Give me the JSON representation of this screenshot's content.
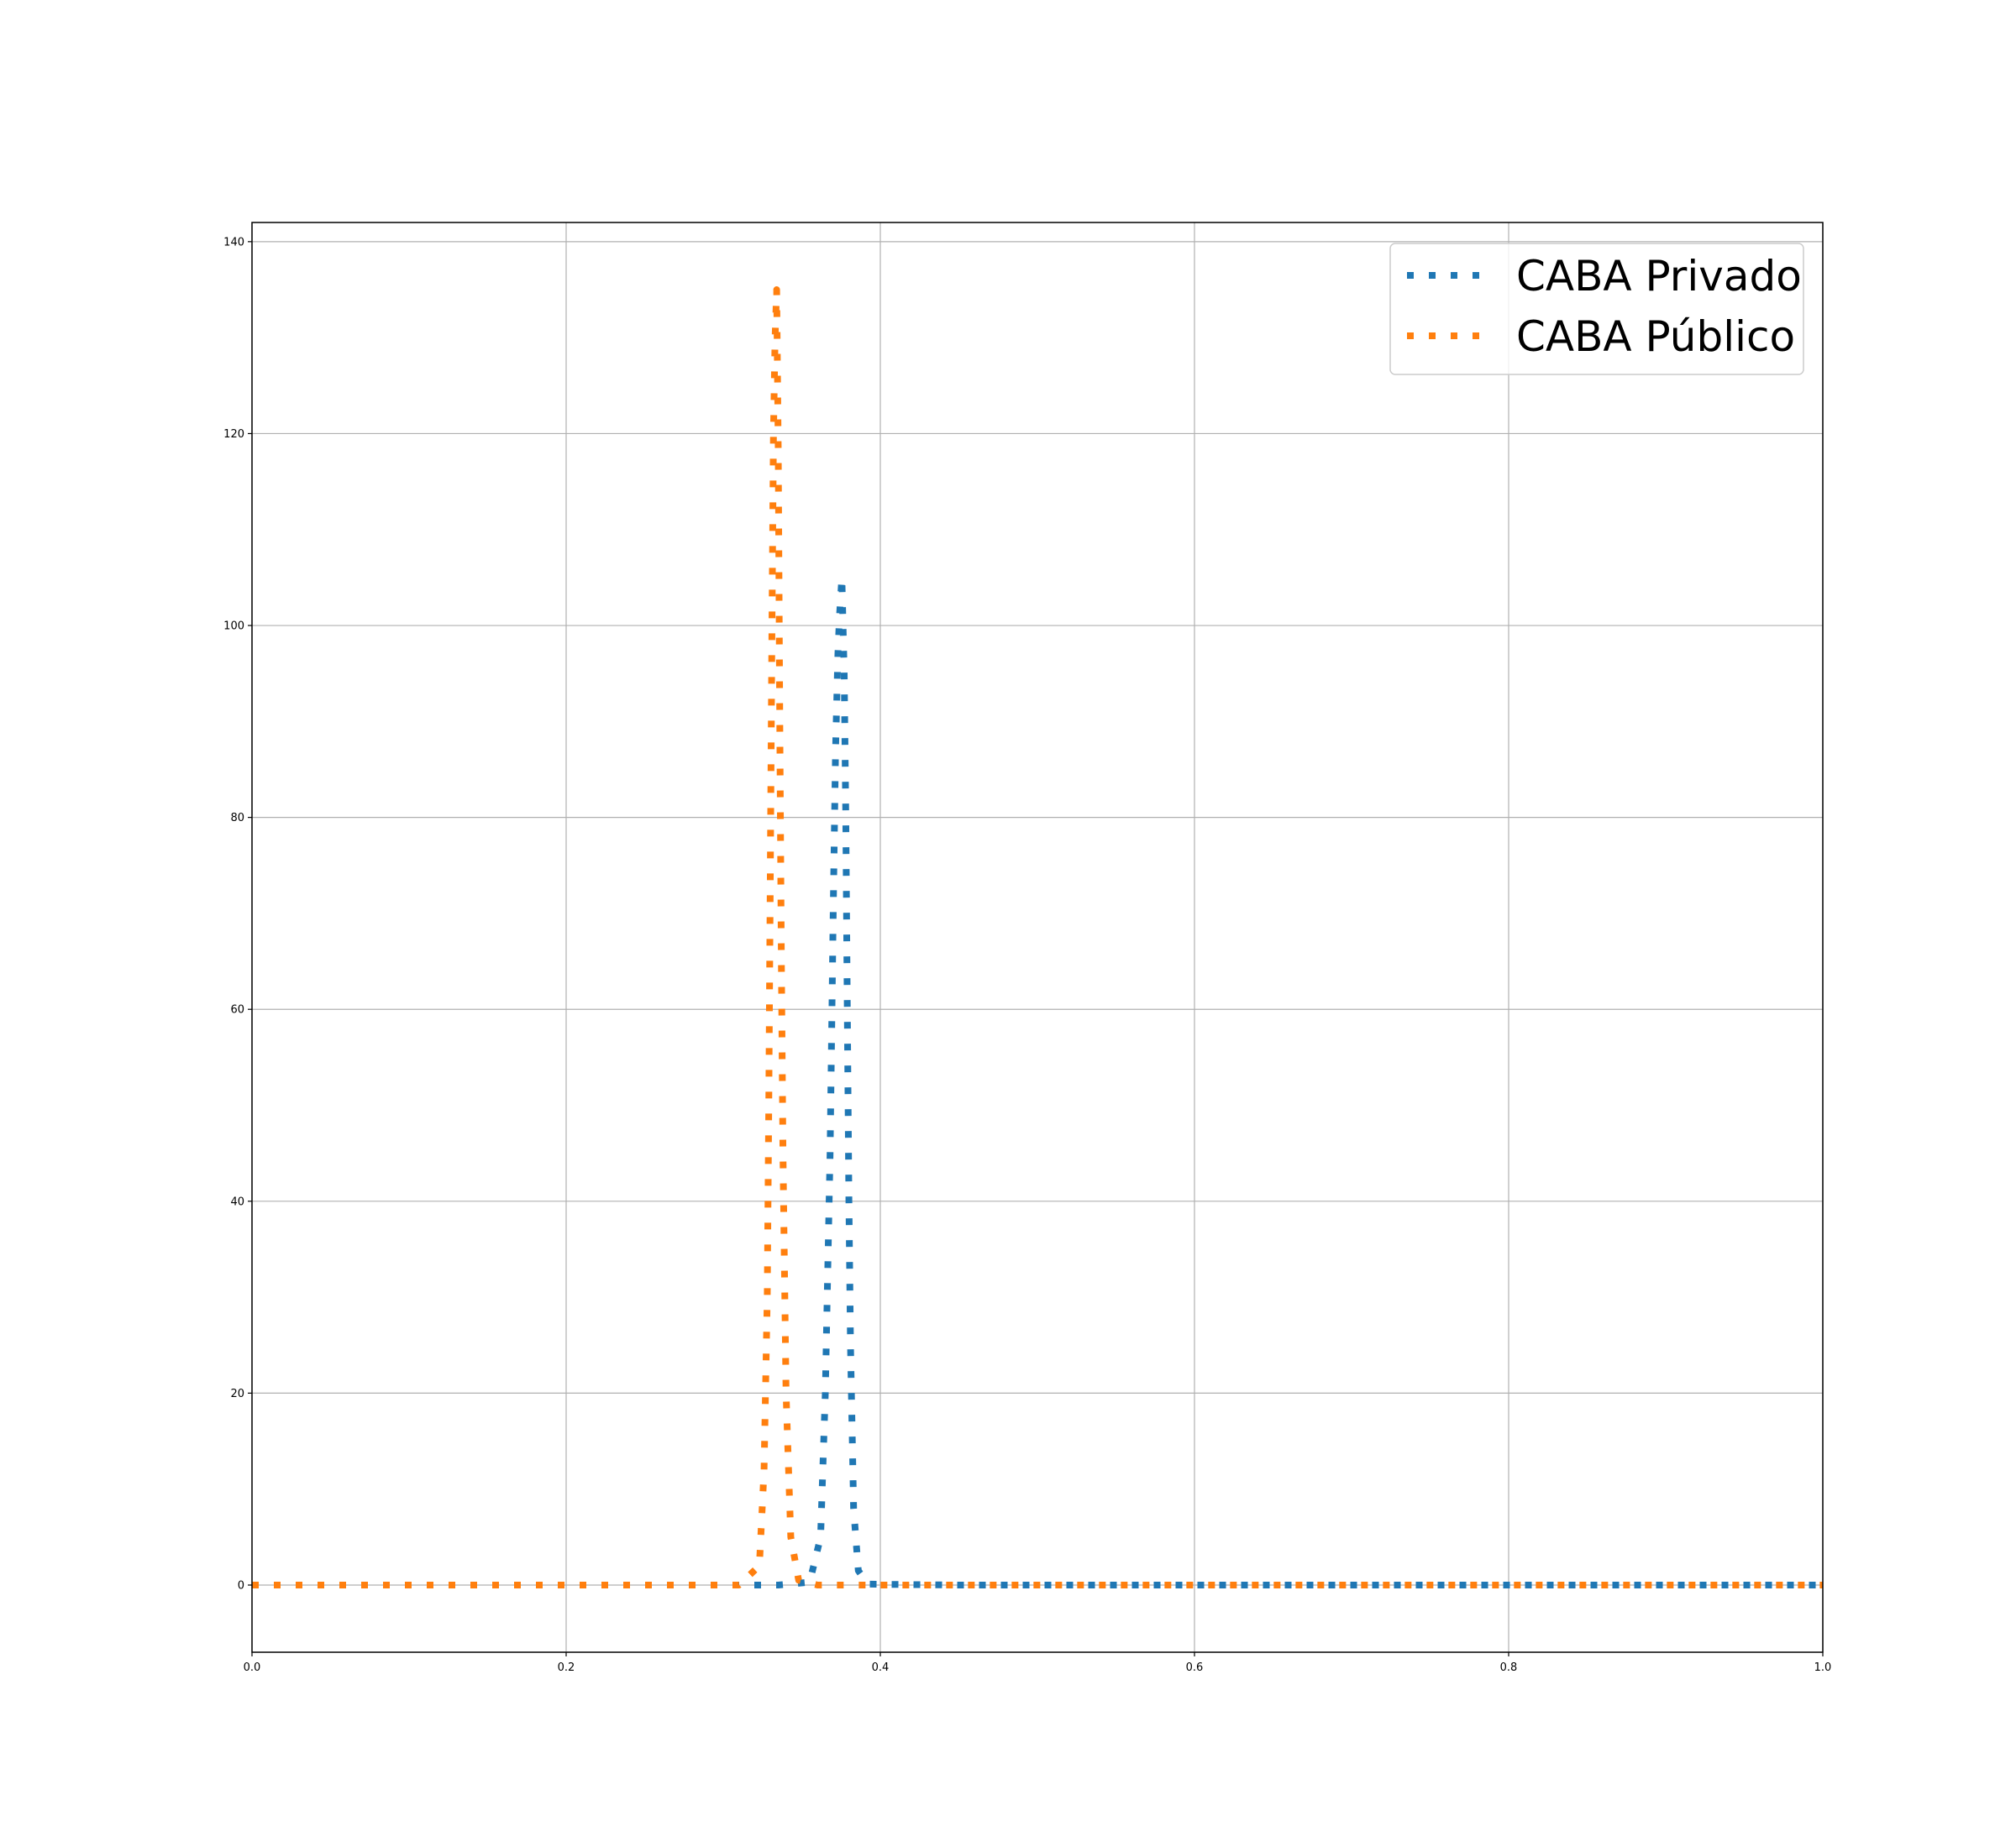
{
  "chart_data": {
    "type": "line",
    "title": "",
    "xlabel": "",
    "ylabel": "",
    "xlim": [
      0.0,
      1.0
    ],
    "ylim": [
      -7,
      142
    ],
    "xticks": [
      0.0,
      0.2,
      0.4,
      0.6,
      0.8,
      1.0
    ],
    "xtick_labels": [
      "0.0",
      "0.2",
      "0.4",
      "0.6",
      "0.8",
      "1.0"
    ],
    "yticks": [
      0,
      20,
      40,
      60,
      80,
      100,
      120,
      140
    ],
    "ytick_labels": [
      "0",
      "20",
      "40",
      "60",
      "80",
      "100",
      "120",
      "140"
    ],
    "grid": true,
    "legend_position": "top-right",
    "line_style": "dotted",
    "series": [
      {
        "name": "CABA Privado",
        "color": "#1f77b4",
        "x": [
          0.0,
          0.335,
          0.355,
          0.362,
          0.365,
          0.368,
          0.37,
          0.3715,
          0.373,
          0.374,
          0.3755,
          0.377,
          0.378,
          0.379,
          0.38,
          0.381,
          0.383,
          0.386,
          0.392,
          0.45,
          1.0
        ],
        "y": [
          0,
          0,
          0.3,
          5,
          20,
          45,
          70,
          87,
          97,
          101,
          105,
          95,
          80,
          60,
          40,
          25,
          8,
          1.5,
          0.1,
          0,
          0
        ]
      },
      {
        "name": "CABA Público",
        "color": "#ff7f0e",
        "x": [
          0.0,
          0.31,
          0.323,
          0.326,
          0.328,
          0.329,
          0.33,
          0.331,
          0.332,
          0.333,
          0.334,
          0.335,
          0.336,
          0.337,
          0.338,
          0.34,
          0.343,
          0.348,
          0.36,
          1.0
        ],
        "y": [
          0,
          0,
          2,
          12,
          30,
          50,
          75,
          100,
          120,
          130,
          135,
          118,
          90,
          65,
          45,
          20,
          5,
          0.5,
          0,
          0
        ]
      }
    ]
  }
}
